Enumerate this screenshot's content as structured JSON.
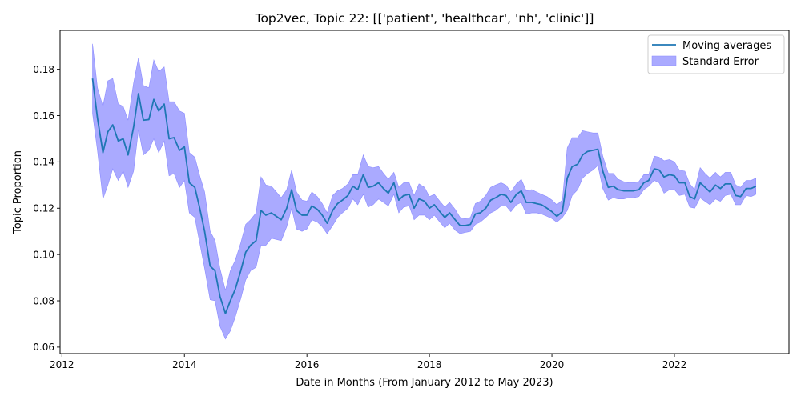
{
  "chart_data": {
    "type": "line",
    "title": "Top2vec, Topic 22: [['patient', 'healthcar', 'nh', 'clinic']]",
    "xlabel": "Date in Months (From January 2012 to May 2023)",
    "ylabel": "Topic Proportion",
    "xlim": [
      2011.97,
      2023.87
    ],
    "ylim": [
      0.0572,
      0.1968
    ],
    "x_ticks": [
      2012,
      2014,
      2016,
      2018,
      2020,
      2022
    ],
    "y_ticks": [
      0.06,
      0.08,
      0.1,
      0.12,
      0.14,
      0.16,
      0.18
    ],
    "y_tick_labels": [
      "0.06",
      "0.08",
      "0.10",
      "0.12",
      "0.14",
      "0.16",
      "0.18"
    ],
    "legend": {
      "position": "top-right",
      "entries": [
        "Moving averages",
        "Standard Error"
      ]
    },
    "colors": {
      "line": "#1f77b4",
      "band": "#aaaaff"
    },
    "series": [
      {
        "name": "Moving averages",
        "x": [
          2012.5,
          2012.58,
          2012.67,
          2012.75,
          2012.83,
          2012.92,
          2013.0,
          2013.08,
          2013.17,
          2013.25,
          2013.33,
          2013.42,
          2013.5,
          2013.58,
          2013.67,
          2013.75,
          2013.83,
          2013.92,
          2014.0,
          2014.08,
          2014.17,
          2014.25,
          2014.33,
          2014.42,
          2014.5,
          2014.58,
          2014.67,
          2014.75,
          2014.83,
          2014.92,
          2015.0,
          2015.08,
          2015.17,
          2015.25,
          2015.33,
          2015.42,
          2015.5,
          2015.58,
          2015.67,
          2015.75,
          2015.83,
          2015.92,
          2016.0,
          2016.08,
          2016.17,
          2016.25,
          2016.33,
          2016.42,
          2016.5,
          2016.58,
          2016.67,
          2016.75,
          2016.83,
          2016.92,
          2017.0,
          2017.08,
          2017.17,
          2017.25,
          2017.33,
          2017.42,
          2017.5,
          2017.58,
          2017.67,
          2017.75,
          2017.83,
          2017.92,
          2018.0,
          2018.08,
          2018.17,
          2018.25,
          2018.33,
          2018.42,
          2018.5,
          2018.58,
          2018.67,
          2018.75,
          2018.83,
          2018.92,
          2019.0,
          2019.08,
          2019.17,
          2019.25,
          2019.33,
          2019.42,
          2019.5,
          2019.58,
          2019.67,
          2019.75,
          2019.83,
          2019.92,
          2020.0,
          2020.08,
          2020.17,
          2020.25,
          2020.33,
          2020.42,
          2020.5,
          2020.58,
          2020.67,
          2020.75,
          2020.83,
          2020.92,
          2021.0,
          2021.08,
          2021.17,
          2021.25,
          2021.33,
          2021.42,
          2021.5,
          2021.58,
          2021.67,
          2021.75,
          2021.83,
          2021.92,
          2022.0,
          2022.08,
          2022.17,
          2022.25,
          2022.33,
          2022.42,
          2022.5,
          2022.58,
          2022.67,
          2022.75,
          2022.83,
          2022.92,
          2023.0,
          2023.08,
          2023.17,
          2023.25,
          2023.33
        ],
        "y": [
          0.176,
          0.159,
          0.144,
          0.153,
          0.156,
          0.149,
          0.15,
          0.143,
          0.155,
          0.1695,
          0.158,
          0.1583,
          0.167,
          0.162,
          0.165,
          0.15,
          0.1505,
          0.145,
          0.1465,
          0.131,
          0.129,
          0.12,
          0.11,
          0.095,
          0.093,
          0.082,
          0.0745,
          0.08,
          0.085,
          0.093,
          0.101,
          0.104,
          0.106,
          0.119,
          0.117,
          0.118,
          0.1165,
          0.115,
          0.12,
          0.128,
          0.119,
          0.117,
          0.117,
          0.121,
          0.1195,
          0.117,
          0.1135,
          0.119,
          0.122,
          0.1235,
          0.1255,
          0.1295,
          0.128,
          0.1345,
          0.129,
          0.1295,
          0.131,
          0.1285,
          0.1265,
          0.131,
          0.1235,
          0.1255,
          0.126,
          0.12,
          0.124,
          0.123,
          0.12,
          0.1215,
          0.1185,
          0.116,
          0.118,
          0.115,
          0.1125,
          0.1125,
          0.113,
          0.1175,
          0.118,
          0.12,
          0.1235,
          0.1245,
          0.126,
          0.1255,
          0.1225,
          0.126,
          0.1275,
          0.1225,
          0.1225,
          0.122,
          0.1215,
          0.12,
          0.1185,
          0.1165,
          0.1185,
          0.133,
          0.138,
          0.139,
          0.143,
          0.1445,
          0.145,
          0.1455,
          0.136,
          0.129,
          0.1295,
          0.128,
          0.1275,
          0.1275,
          0.1275,
          0.128,
          0.131,
          0.132,
          0.137,
          0.1365,
          0.1335,
          0.1345,
          0.134,
          0.131,
          0.131,
          0.125,
          0.124,
          0.131,
          0.129,
          0.127,
          0.13,
          0.1285,
          0.1305,
          0.1305,
          0.1255,
          0.125,
          0.1285,
          0.1285,
          0.1295
        ]
      },
      {
        "name": "Standard Error",
        "upper": [
          0.191,
          0.172,
          0.164,
          0.175,
          0.176,
          0.165,
          0.164,
          0.158,
          0.174,
          0.185,
          0.173,
          0.172,
          0.184,
          0.179,
          0.181,
          0.166,
          0.166,
          0.162,
          0.161,
          0.144,
          0.142,
          0.134,
          0.127,
          0.11,
          0.106,
          0.094,
          0.0845,
          0.093,
          0.0975,
          0.105,
          0.113,
          0.115,
          0.118,
          0.1335,
          0.13,
          0.1295,
          0.127,
          0.1245,
          0.128,
          0.1365,
          0.127,
          0.1235,
          0.123,
          0.127,
          0.125,
          0.122,
          0.118,
          0.1255,
          0.1275,
          0.1285,
          0.1305,
          0.1345,
          0.1345,
          0.143,
          0.138,
          0.1375,
          0.138,
          0.135,
          0.1325,
          0.1355,
          0.129,
          0.131,
          0.131,
          0.1255,
          0.1305,
          0.129,
          0.125,
          0.126,
          0.123,
          0.1205,
          0.1225,
          0.1195,
          0.116,
          0.1155,
          0.116,
          0.122,
          0.123,
          0.1255,
          0.129,
          0.13,
          0.131,
          0.13,
          0.127,
          0.1305,
          0.1325,
          0.1275,
          0.128,
          0.127,
          0.126,
          0.125,
          0.1235,
          0.1215,
          0.1235,
          0.146,
          0.1505,
          0.1505,
          0.1535,
          0.153,
          0.1525,
          0.1525,
          0.1425,
          0.135,
          0.135,
          0.1325,
          0.1315,
          0.131,
          0.131,
          0.1315,
          0.1345,
          0.1345,
          0.1425,
          0.142,
          0.1405,
          0.141,
          0.14,
          0.1365,
          0.136,
          0.1305,
          0.128,
          0.1375,
          0.135,
          0.133,
          0.1355,
          0.1335,
          0.1355,
          0.1355,
          0.13,
          0.129,
          0.132,
          0.132,
          0.133
        ],
        "lower": [
          0.161,
          0.145,
          0.124,
          0.13,
          0.137,
          0.132,
          0.136,
          0.129,
          0.136,
          0.154,
          0.143,
          0.145,
          0.15,
          0.144,
          0.149,
          0.134,
          0.135,
          0.129,
          0.132,
          0.118,
          0.116,
          0.105,
          0.094,
          0.0805,
          0.08,
          0.069,
          0.0635,
          0.067,
          0.073,
          0.081,
          0.089,
          0.093,
          0.0945,
          0.104,
          0.104,
          0.107,
          0.1065,
          0.106,
          0.112,
          0.12,
          0.111,
          0.11,
          0.111,
          0.115,
          0.114,
          0.112,
          0.109,
          0.1125,
          0.116,
          0.118,
          0.12,
          0.124,
          0.1215,
          0.126,
          0.1205,
          0.1215,
          0.124,
          0.1225,
          0.121,
          0.126,
          0.118,
          0.1205,
          0.121,
          0.115,
          0.117,
          0.117,
          0.115,
          0.117,
          0.114,
          0.1115,
          0.1135,
          0.1105,
          0.109,
          0.1095,
          0.11,
          0.113,
          0.114,
          0.116,
          0.118,
          0.119,
          0.121,
          0.121,
          0.1185,
          0.1215,
          0.1225,
          0.1175,
          0.118,
          0.118,
          0.1175,
          0.1165,
          0.1155,
          0.114,
          0.116,
          0.119,
          0.1255,
          0.128,
          0.133,
          0.135,
          0.1365,
          0.1385,
          0.1285,
          0.1235,
          0.1245,
          0.124,
          0.124,
          0.1245,
          0.1245,
          0.125,
          0.128,
          0.1295,
          0.132,
          0.131,
          0.1265,
          0.128,
          0.128,
          0.1255,
          0.126,
          0.1205,
          0.12,
          0.1245,
          0.123,
          0.1215,
          0.124,
          0.123,
          0.1255,
          0.126,
          0.1215,
          0.1215,
          0.1255,
          0.125,
          0.126
        ]
      }
    ]
  }
}
